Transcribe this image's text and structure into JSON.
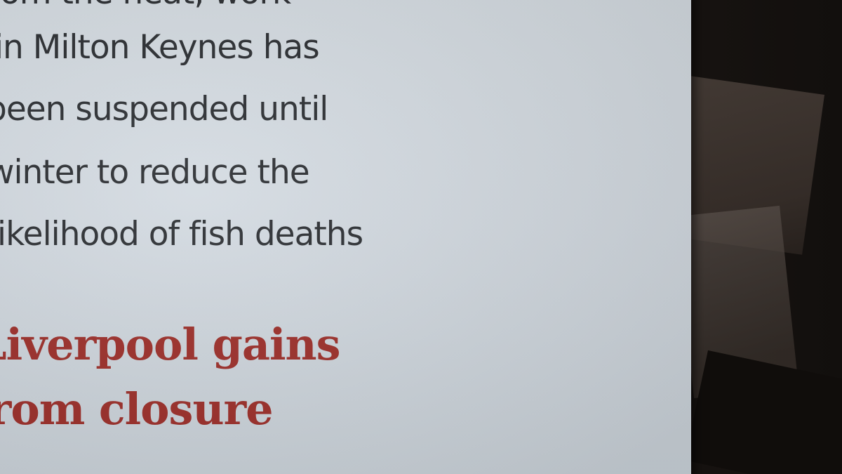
{
  "article": {
    "body_lines": [
      "om the heat, work",
      "in Milton Keynes has",
      "been suspended until",
      "winter to  reduce the",
      "likelihood of fish deaths"
    ],
    "headline_lines": [
      "Liverpool gains",
      "from closure"
    ]
  },
  "colors": {
    "body_text": "#2a2d31",
    "headline": "#9e2f2a",
    "paper": "#d3dae1"
  }
}
